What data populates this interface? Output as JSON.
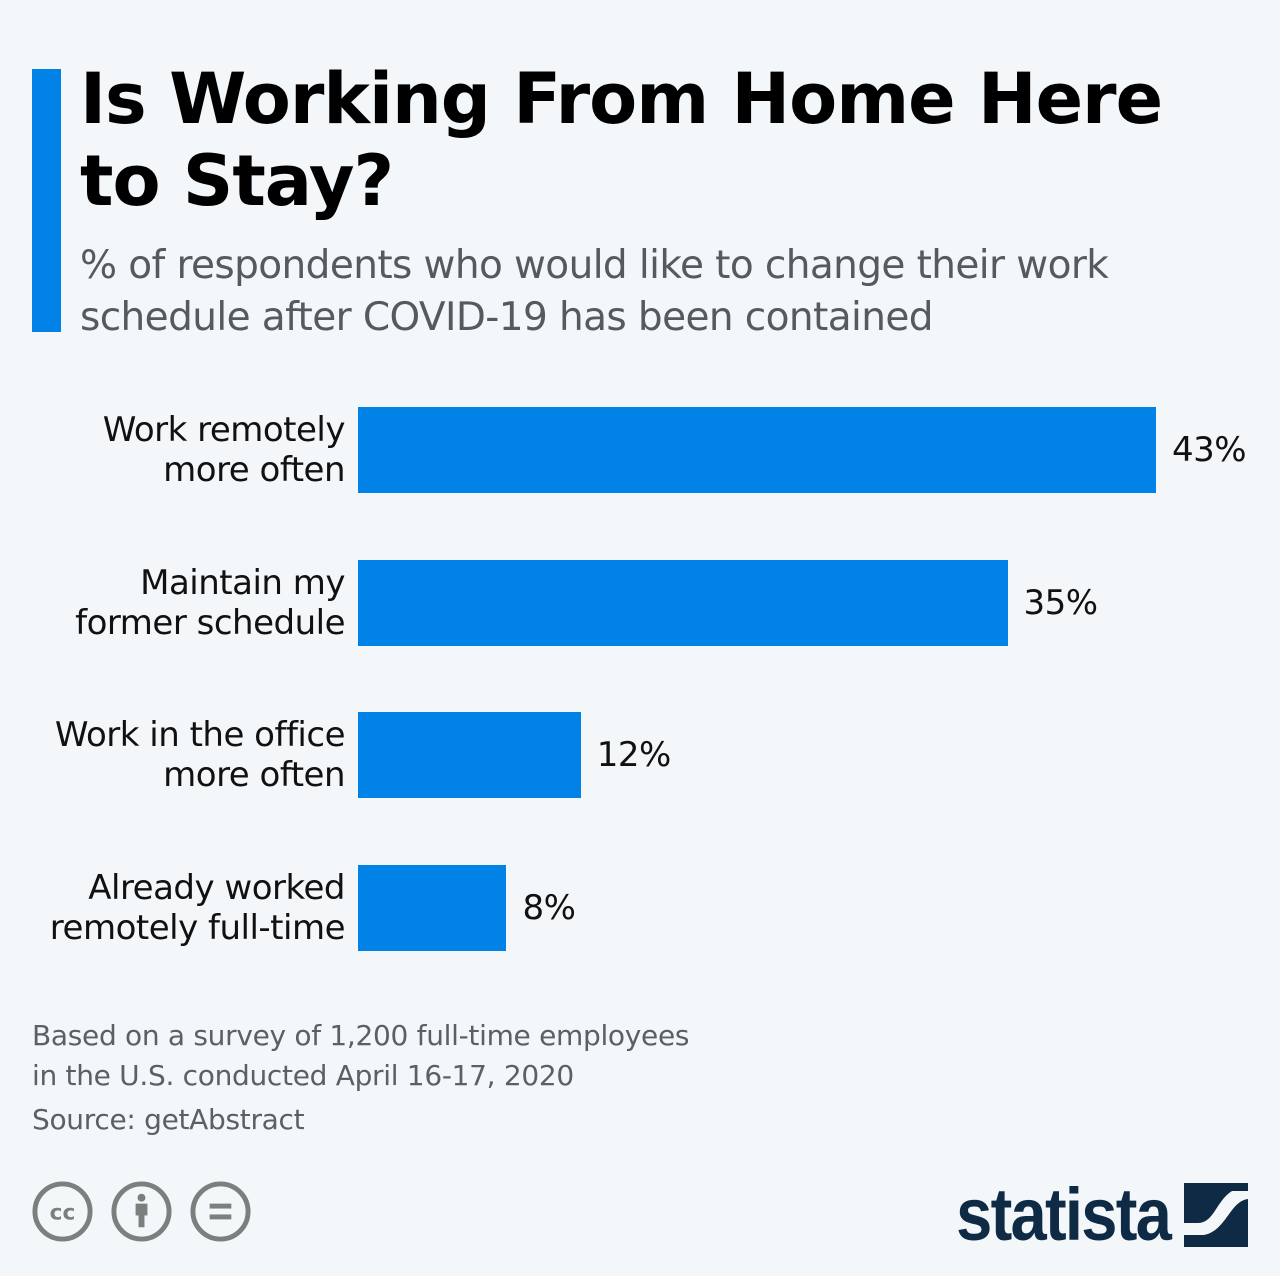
{
  "header": {
    "title": "Is Working From Home Here to Stay?",
    "subtitle": "% of respondents who would like to change their work schedule after COVID-19 has been contained"
  },
  "colors": {
    "bar": "#0082e6",
    "accent": "#0082e6",
    "background": "#f3f7fa",
    "title": "#000000",
    "subtitle": "#555a5c",
    "footer_text": "#5b6062",
    "license_icons": "#7b7f7d",
    "logo": "#0f2a44"
  },
  "chart_data": {
    "type": "bar",
    "orientation": "horizontal",
    "title": "Is Working From Home Here to Stay?",
    "subtitle": "% of respondents who would like to change their work schedule after COVID-19 has been contained",
    "categories": [
      "Work remotely more often",
      "Maintain my former schedule",
      "Work in the office more often",
      "Already worked remotely full-time"
    ],
    "values": [
      43,
      35,
      12,
      8
    ],
    "value_labels": [
      "43%",
      "35%",
      "12%",
      "8%"
    ],
    "unit": "%",
    "xlabel": "",
    "ylabel": "",
    "grid": false,
    "legend": null
  },
  "bars": [
    {
      "label": "Work remotely\nmore often",
      "value": 43,
      "value_label": "43%"
    },
    {
      "label": "Maintain my\nformer schedule",
      "value": 35,
      "value_label": "35%"
    },
    {
      "label": "Work in the office\nmore often",
      "value": 12,
      "value_label": "12%"
    },
    {
      "label": "Already worked\nremotely full-time",
      "value": 8,
      "value_label": "8%"
    }
  ],
  "footer": {
    "note_line1": "Based on a survey of 1,200 full-time employees",
    "note_line2": "in the U.S. conducted April 16-17, 2020",
    "source": "Source: getAbstract",
    "license_icons": [
      "cc-icon",
      "attribution-icon",
      "no-derivatives-icon"
    ],
    "logo_text": "statista"
  }
}
